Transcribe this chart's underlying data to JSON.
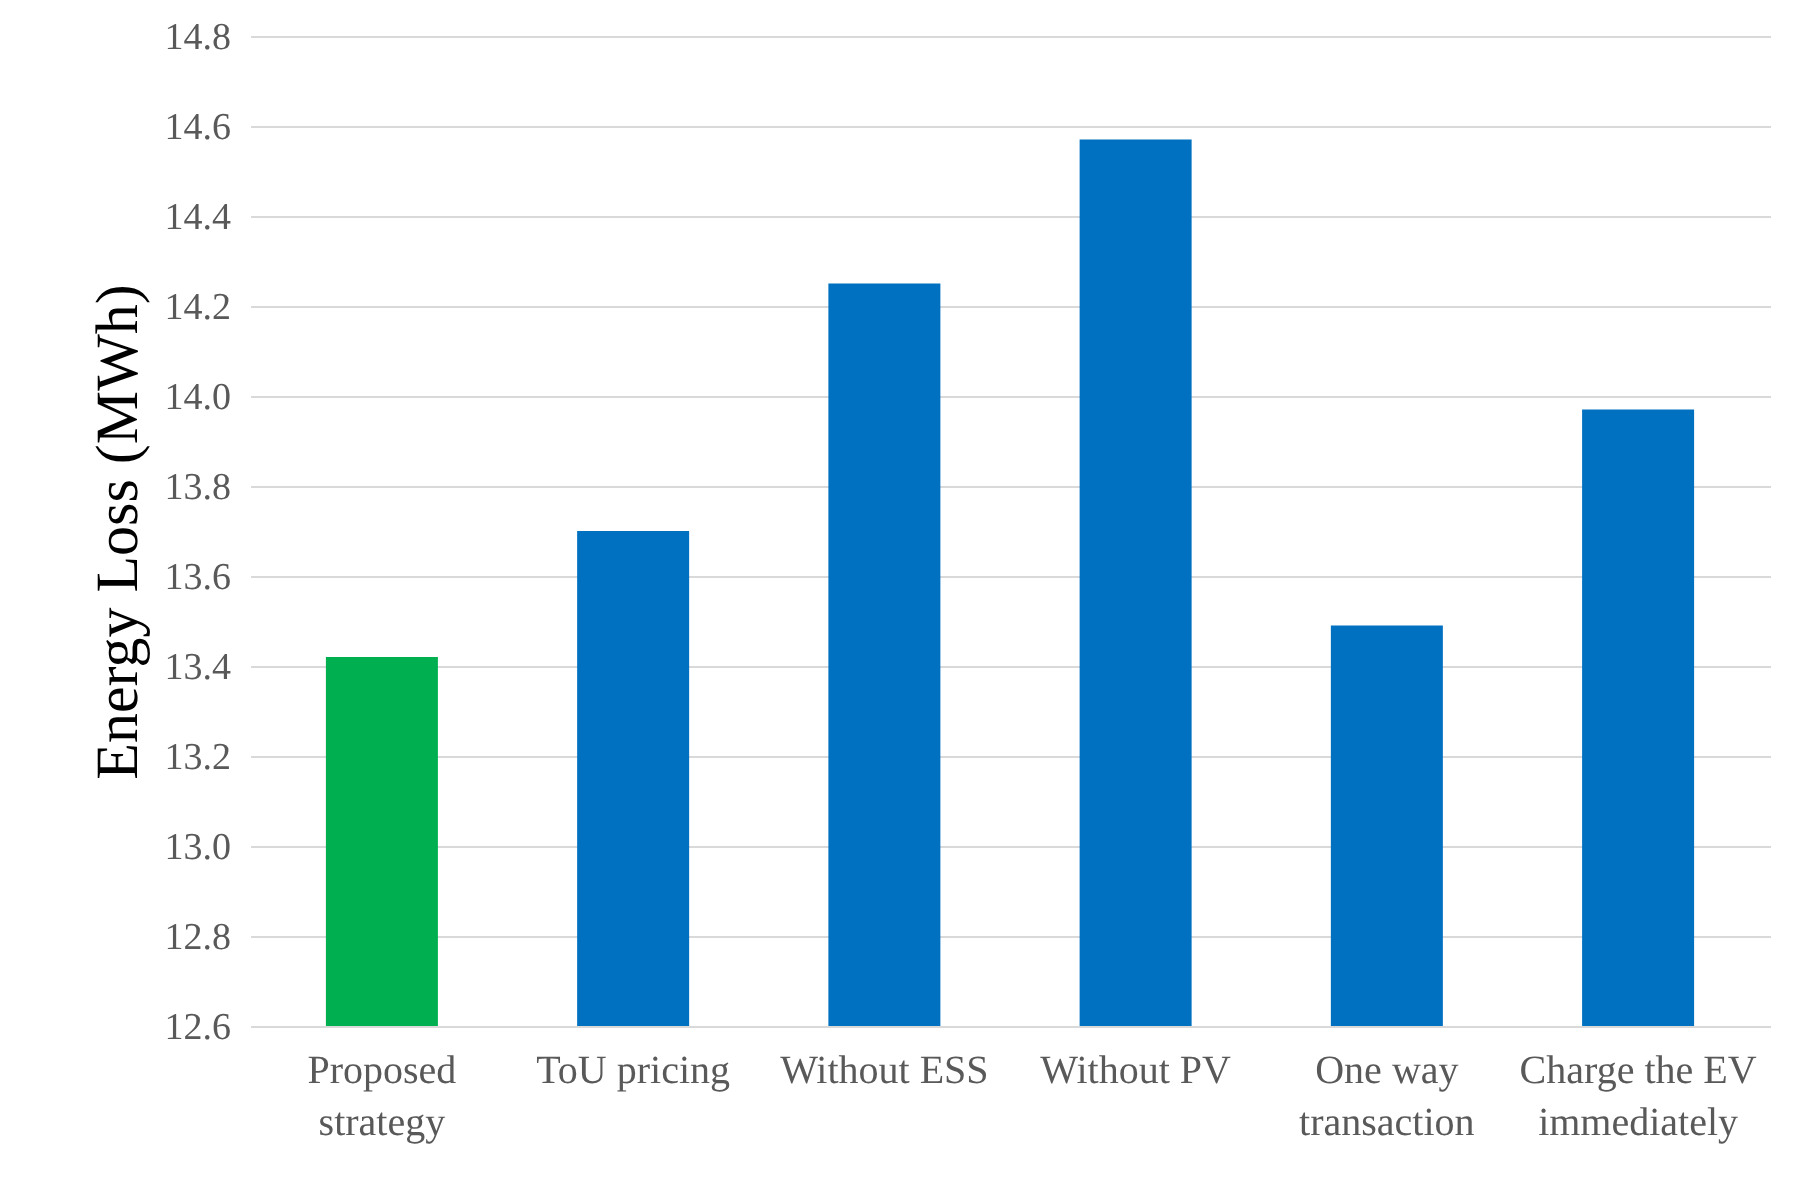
{
  "chart_data": {
    "type": "bar",
    "ylabel": "Energy Loss (MWh)",
    "categories": [
      "Proposed strategy",
      "ToU pricing",
      "Without ESS",
      "Without PV",
      "One way transaction",
      "Charge the EV immediately"
    ],
    "values": [
      13.42,
      13.7,
      14.25,
      14.57,
      13.49,
      13.97
    ],
    "colors": [
      "#00b050",
      "#0070c0",
      "#0070c0",
      "#0070c0",
      "#0070c0",
      "#0070c0"
    ],
    "ylim": [
      12.6,
      14.8
    ],
    "yticks": [
      12.6,
      12.8,
      {
        "value": 13,
        "label": "13.0"
      },
      13.2,
      13.4,
      13.6,
      13.8,
      {
        "value": 14,
        "label": "14.0"
      },
      14.2,
      14.4,
      14.6,
      14.8
    ],
    "grid": "y"
  }
}
